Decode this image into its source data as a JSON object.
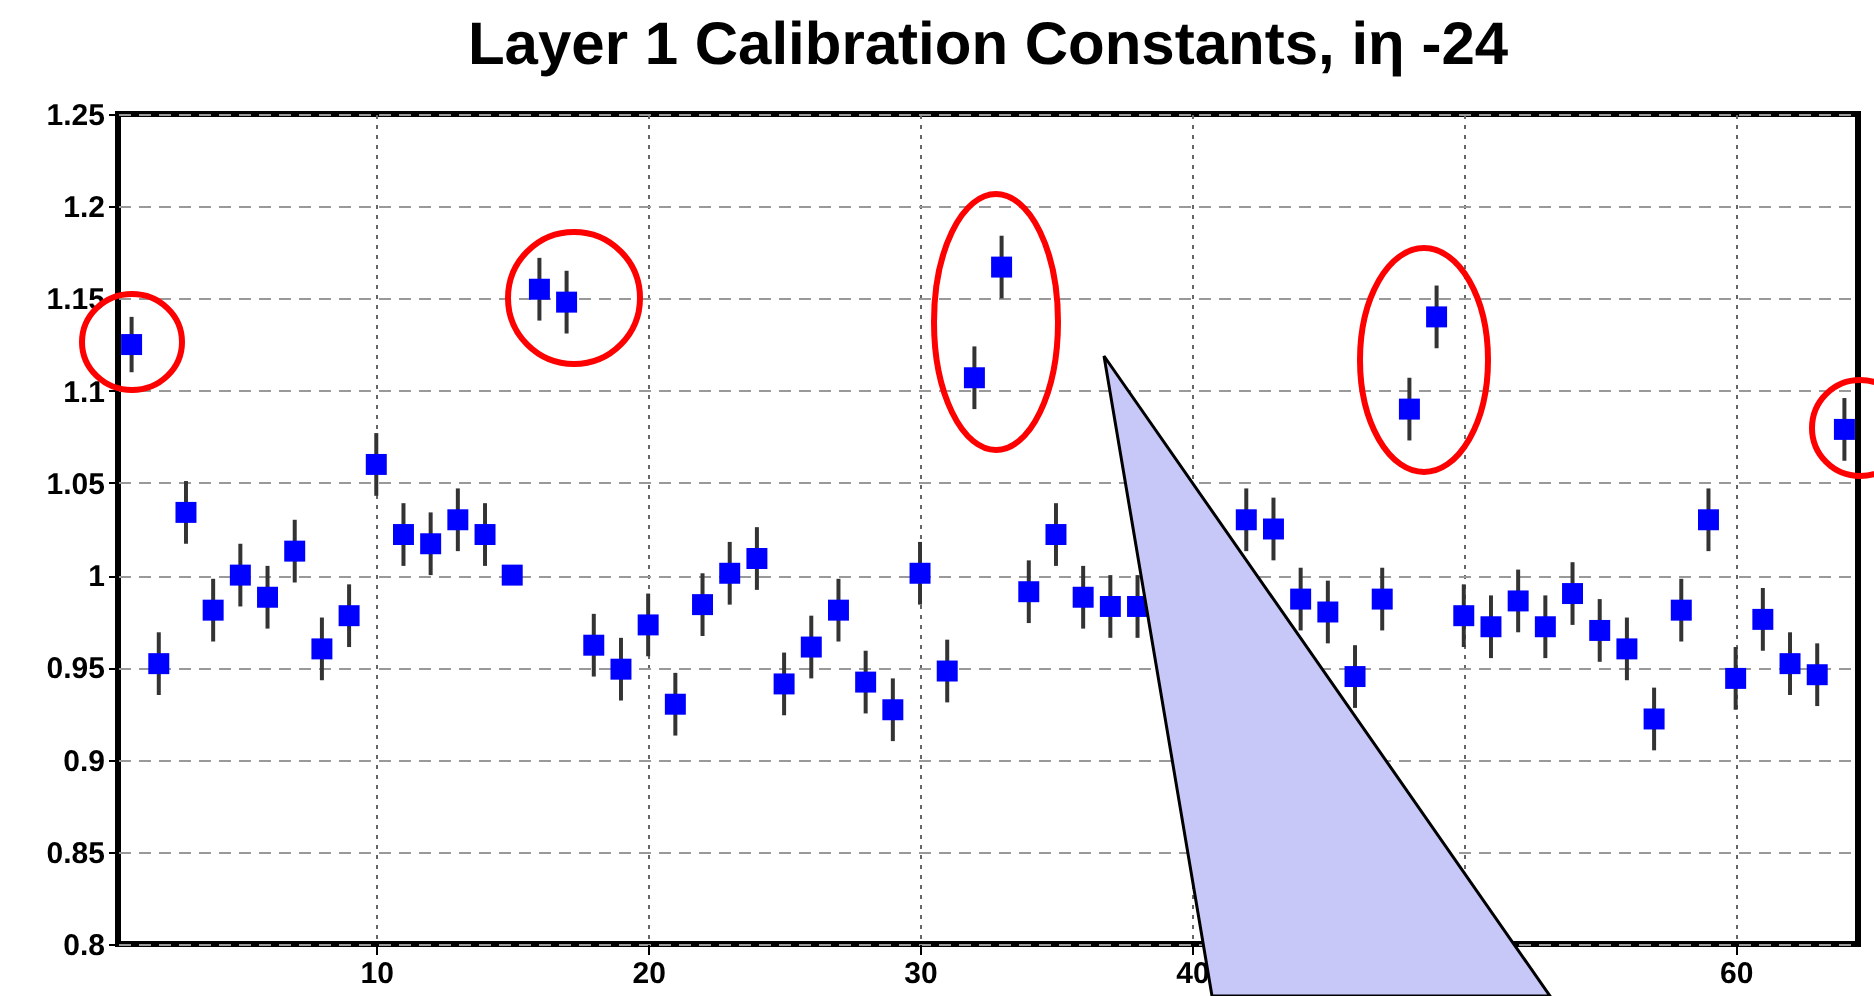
{
  "chart_data": {
    "type": "scatter",
    "title": "Layer 1 Calibration Constants, iη -24",
    "x": [
      1,
      2,
      3,
      4,
      5,
      6,
      7,
      8,
      9,
      10,
      11,
      12,
      13,
      14,
      15,
      16,
      17,
      18,
      19,
      20,
      21,
      22,
      23,
      24,
      25,
      26,
      27,
      28,
      29,
      30,
      31,
      32,
      33,
      34,
      35,
      36,
      37,
      38,
      39,
      40,
      41,
      42,
      43,
      44,
      45,
      46,
      47,
      48,
      49,
      50,
      51,
      52,
      53,
      54,
      55,
      56,
      57,
      58,
      59,
      60,
      61,
      62,
      63,
      64
    ],
    "series": [
      {
        "color": "#0000ff",
        "values": [
          1.125,
          0.952,
          1.034,
          0.981,
          1.0,
          0.988,
          1.013,
          0.96,
          0.978,
          1.06,
          1.022,
          1.017,
          1.03,
          1.022,
          1.0,
          1.155,
          1.148,
          0.962,
          0.949,
          0.973,
          0.93,
          0.984,
          1.001,
          1.009,
          0.941,
          0.961,
          0.981,
          0.942,
          0.927,
          1.001,
          0.948,
          1.107,
          1.167,
          0.991,
          1.022,
          0.988,
          0.983,
          0.983,
          null,
          null,
          null,
          1.03,
          1.025,
          0.987,
          0.98,
          0.945,
          0.987,
          1.09,
          1.14,
          0.978,
          0.972,
          0.986,
          0.972,
          0.99,
          0.97,
          0.96,
          0.922,
          0.981,
          1.03,
          0.944,
          0.976,
          0.952,
          0.946,
          1.079
        ],
        "errors": [
          0.015,
          0.017,
          0.017,
          0.017,
          0.017,
          0.017,
          0.017,
          0.017,
          0.017,
          0.017,
          0.017,
          0.017,
          0.017,
          0.017,
          null,
          0.017,
          0.017,
          0.017,
          0.017,
          0.017,
          0.017,
          0.017,
          0.017,
          0.017,
          0.017,
          0.017,
          0.017,
          0.017,
          0.017,
          0.017,
          0.017,
          0.017,
          0.017,
          0.017,
          0.017,
          0.017,
          0.017,
          0.017,
          null,
          null,
          null,
          0.017,
          0.017,
          0.017,
          0.017,
          0.017,
          0.017,
          0.017,
          0.017,
          0.017,
          0.017,
          0.017,
          0.017,
          0.017,
          0.017,
          0.017,
          0.017,
          0.017,
          0.017,
          0.017,
          0.017,
          0.017,
          0.017,
          0.017
        ]
      }
    ],
    "xlim": [
      0.5,
      64.5
    ],
    "xticks": [
      10,
      20,
      30,
      40,
      {
        "value": 50,
        "label": null
      },
      60
    ],
    "ylim": [
      0.8,
      1.25
    ],
    "yticks": [
      0.8,
      0.85,
      0.9,
      0.95,
      1,
      1.05,
      1.1,
      1.15,
      1.2,
      1.25
    ],
    "grid": true,
    "marker": "square"
  }
}
